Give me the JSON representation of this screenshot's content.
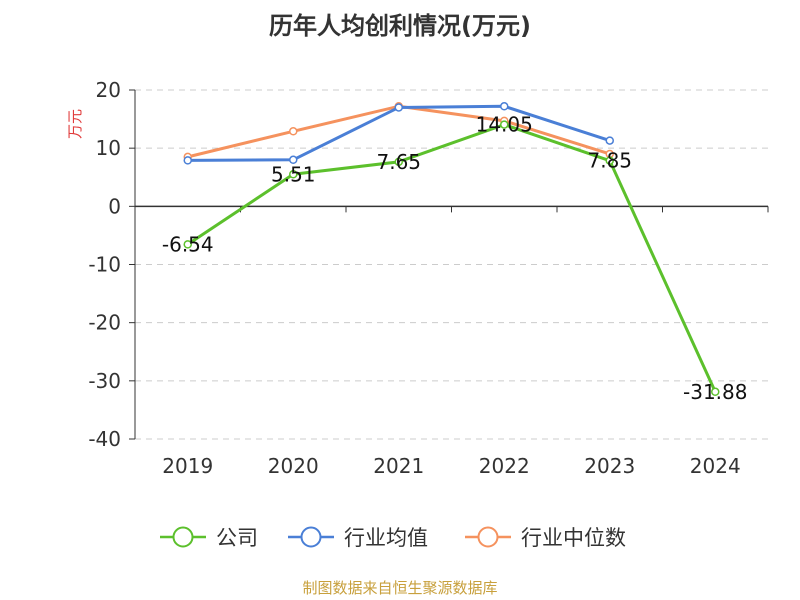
{
  "chart_data": {
    "type": "line",
    "title": "历年人均创利情况(万元)",
    "ylabel": "万元",
    "categories": [
      "2019",
      "2020",
      "2021",
      "2022",
      "2023",
      "2024"
    ],
    "ylim": [
      -40,
      20
    ],
    "yticks": [
      "20",
      "10",
      "0",
      "-10",
      "-20",
      "-30",
      "-40"
    ],
    "yticks_values": [
      20,
      10,
      0,
      -10,
      -20,
      -30,
      -40
    ],
    "grid": true,
    "legend_position": "bottom",
    "series": [
      {
        "name": "公司",
        "color": "#5cc02c",
        "values": [
          -6.54,
          5.51,
          7.65,
          14.05,
          7.85,
          -31.88
        ],
        "labels": [
          "-6.54",
          "5.51",
          "7.65",
          "14.05",
          "7.85",
          "-31.88"
        ]
      },
      {
        "name": "行业均值",
        "color": "#4a7fd6",
        "values": [
          7.9,
          8.0,
          17.0,
          17.2,
          11.3,
          null
        ]
      },
      {
        "name": "行业中位数",
        "color": "#f5925e",
        "values": [
          8.5,
          12.9,
          17.2,
          14.7,
          9.0,
          null
        ]
      }
    ],
    "source": "制图数据来自恒生聚源数据库"
  }
}
